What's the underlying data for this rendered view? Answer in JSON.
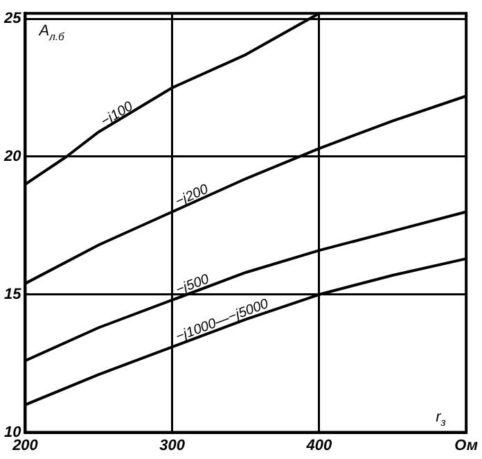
{
  "chart_data": {
    "type": "line",
    "ylabel": "A$_{л.б}$",
    "xlabel": "r$_{з}$",
    "xlim": [
      200,
      500
    ],
    "xticks": [
      200,
      300,
      400,
      {
        "value": 500,
        "label": "Ом"
      }
    ],
    "ylim": [
      10,
      25.2
    ],
    "yticks": [
      10,
      15,
      20,
      25
    ],
    "grid": true,
    "legend": false,
    "marker": "none",
    "line_style": "solid",
    "series": [
      {
        "name": "−j100",
        "color": "#000000",
        "x": [
          200,
          228,
          250,
          300,
          350,
          400
        ],
        "values": [
          19.0,
          20.0,
          20.9,
          22.5,
          23.7,
          25.2
        ]
      },
      {
        "name": "−j200",
        "color": "#000000",
        "x": [
          200,
          250,
          300,
          350,
          400,
          450,
          500
        ],
        "values": [
          15.4,
          16.8,
          18.0,
          19.2,
          20.3,
          21.3,
          22.2
        ]
      },
      {
        "name": "−j500",
        "color": "#000000",
        "x": [
          200,
          250,
          300,
          350,
          400,
          450,
          500
        ],
        "values": [
          12.6,
          13.8,
          14.8,
          15.8,
          16.6,
          17.3,
          18.0
        ]
      },
      {
        "name": "−j1000—−j5000",
        "color": "#000000",
        "x": [
          200,
          250,
          300,
          350,
          400,
          450,
          500
        ],
        "values": [
          11.0,
          12.1,
          13.1,
          14.1,
          15.0,
          15.7,
          16.3
        ]
      }
    ]
  }
}
